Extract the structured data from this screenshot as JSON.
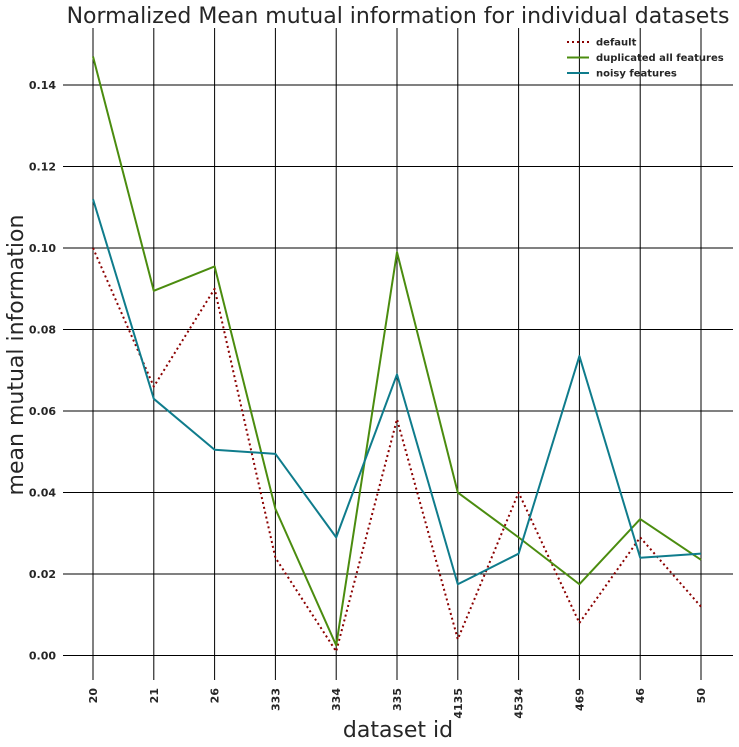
{
  "chart_data": {
    "type": "line",
    "title": "Normalized Mean mutual information for individual datasets",
    "xlabel": "dataset id",
    "ylabel": "mean mutual information",
    "categories": [
      "20",
      "21",
      "26",
      "333",
      "334",
      "335",
      "4135",
      "4534",
      "469",
      "46",
      "50"
    ],
    "ylim": [
      -0.006,
      0.154
    ],
    "yticks": [
      0.0,
      0.02,
      0.04,
      0.06,
      0.08,
      0.1,
      0.12,
      0.14
    ],
    "ytick_labels": [
      "0.00",
      "0.02",
      "0.04",
      "0.06",
      "0.08",
      "0.10",
      "0.12",
      "0.14"
    ],
    "grid": true,
    "legend_position": "top-right",
    "series": [
      {
        "name": "default",
        "color": "#8b0000",
        "style": "dotted",
        "values": [
          0.1,
          0.066,
          0.09,
          0.024,
          0.001,
          0.058,
          0.004,
          0.04,
          0.008,
          0.029,
          0.012
        ]
      },
      {
        "name": "duplicated all features",
        "color": "#4b8c0f",
        "style": "solid",
        "values": [
          0.147,
          0.0895,
          0.0955,
          0.036,
          0.0025,
          0.099,
          0.04,
          0.029,
          0.0175,
          0.0335,
          0.0235
        ]
      },
      {
        "name": "noisy features",
        "color": "#0f7c8c",
        "style": "solid",
        "values": [
          0.112,
          0.063,
          0.0505,
          0.0495,
          0.029,
          0.069,
          0.0175,
          0.025,
          0.0735,
          0.024,
          0.025
        ]
      }
    ]
  }
}
